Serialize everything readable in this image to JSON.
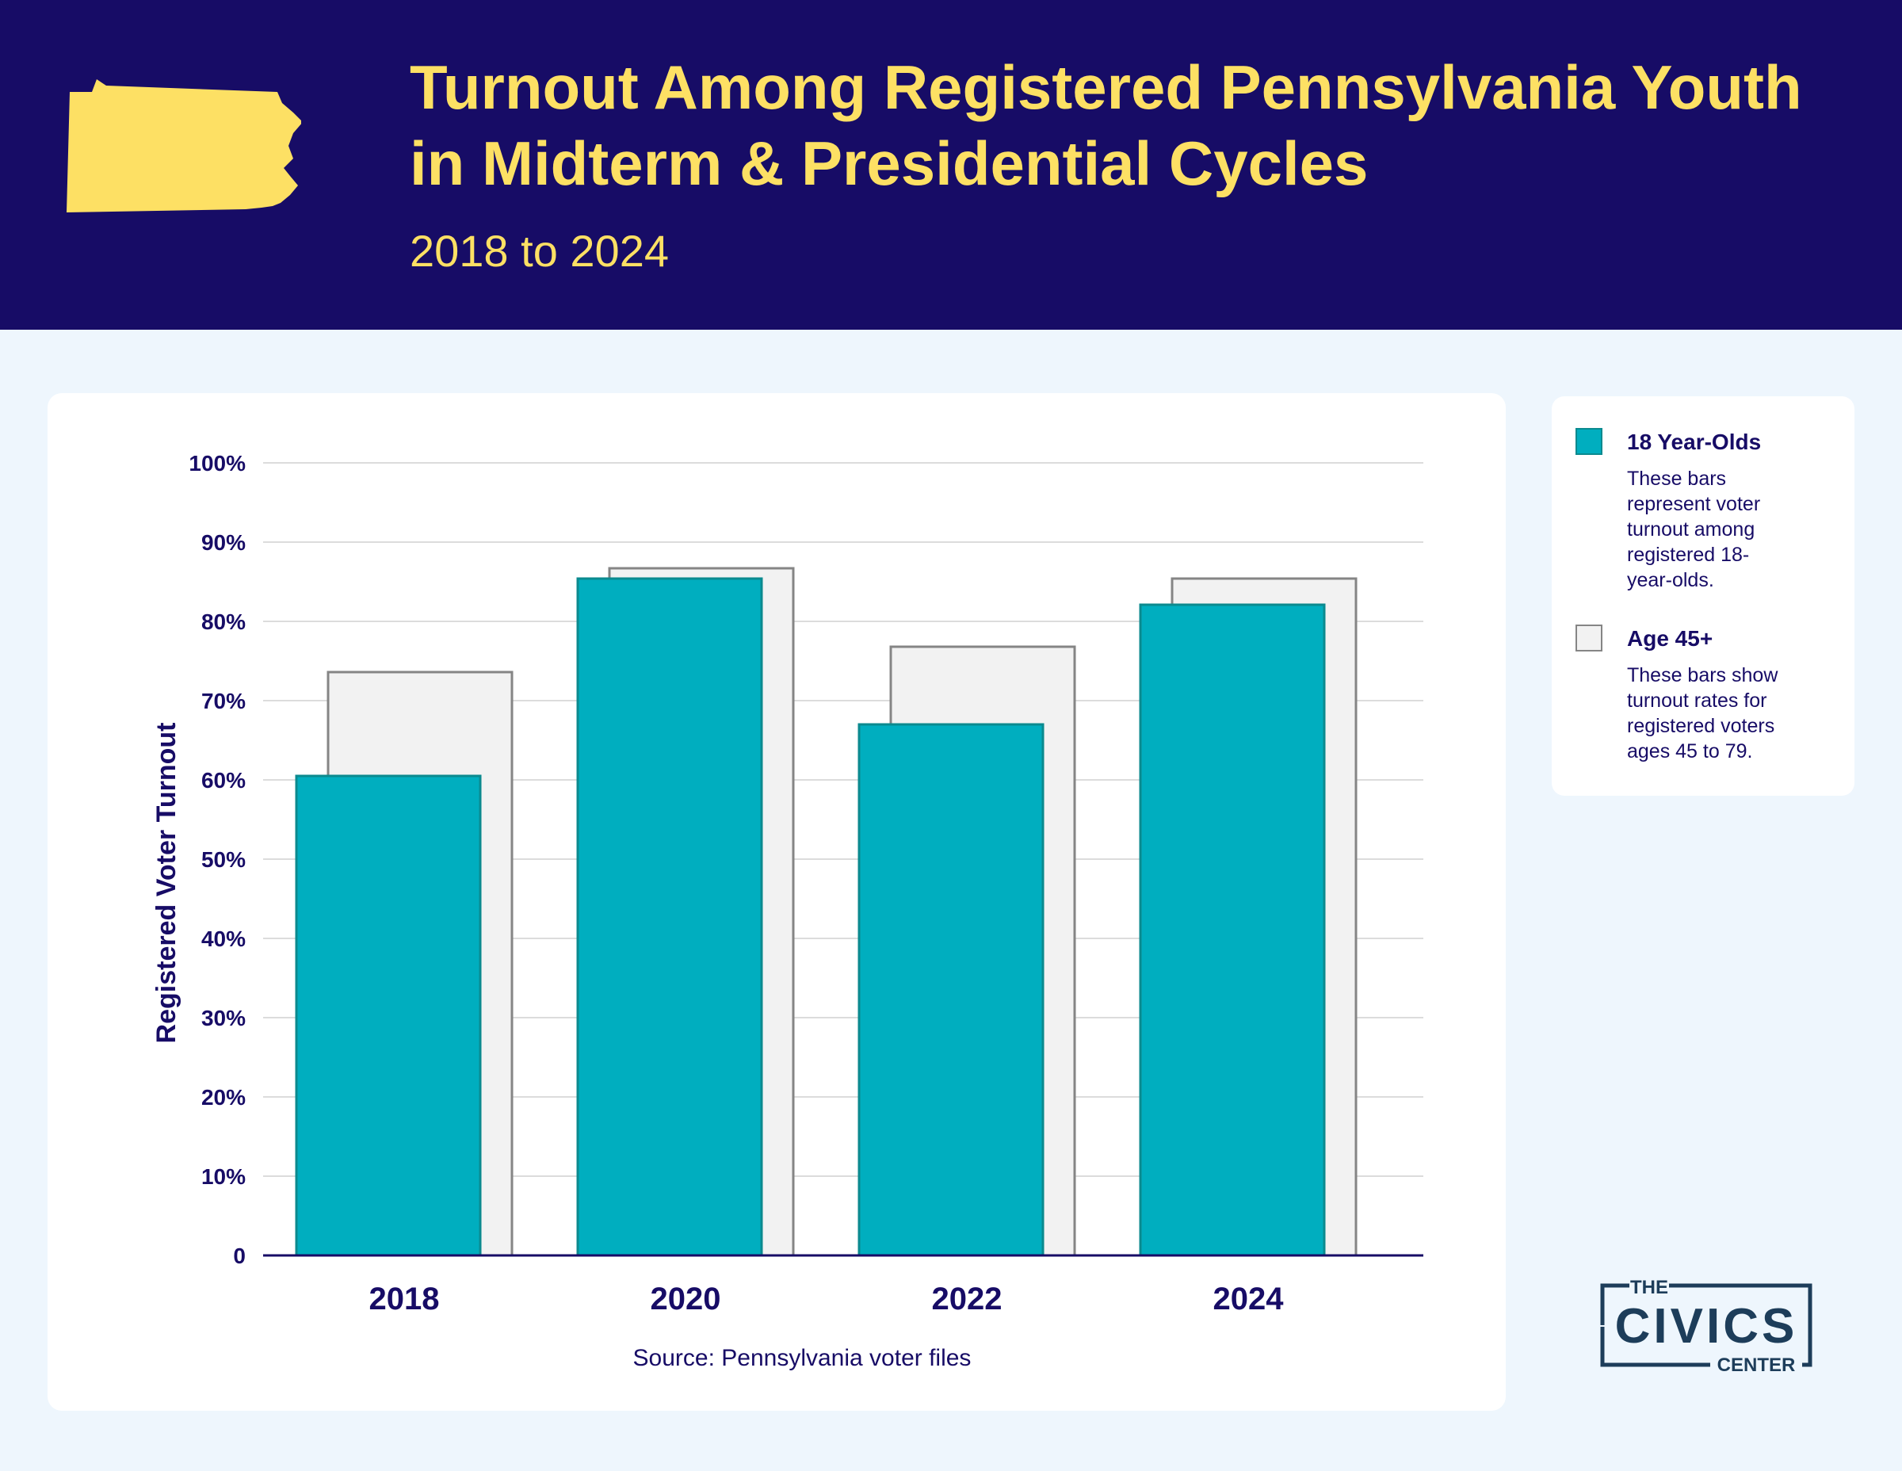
{
  "header": {
    "title": "Turnout Among Registered Pennsylvania Youth in Midterm & Presidential Cycles",
    "subtitle": "2018 to 2024",
    "icon": "pennsylvania-map-icon"
  },
  "colors": {
    "header_bg": "#170c66",
    "title": "#fde064",
    "series_18": "#00aebf",
    "series_18_border": "#0b8a8f",
    "series_45": "#f2f2f2",
    "series_45_border": "#858585",
    "axis": "#170c66"
  },
  "chart_data": {
    "type": "bar",
    "categories": [
      "2018",
      "2020",
      "2022",
      "2024"
    ],
    "series": [
      {
        "name": "18 Year-Olds",
        "values": [
          60.5,
          85.4,
          67.0,
          82.1
        ]
      },
      {
        "name": "Age 45+",
        "values": [
          73.6,
          86.7,
          76.8,
          85.4
        ]
      }
    ],
    "ylabel": "Registered Voter Turnout",
    "xlabel": "",
    "ylim": [
      0,
      100
    ],
    "yticks": [
      {
        "value": 0,
        "label": "0"
      },
      {
        "value": 10,
        "label": "10%"
      },
      {
        "value": 20,
        "label": "20%"
      },
      {
        "value": 30,
        "label": "30%"
      },
      {
        "value": 40,
        "label": "40%"
      },
      {
        "value": 50,
        "label": "50%"
      },
      {
        "value": 60,
        "label": "60%"
      },
      {
        "value": 70,
        "label": "70%"
      },
      {
        "value": 80,
        "label": "80%"
      },
      {
        "value": 90,
        "label": "90%"
      },
      {
        "value": 100,
        "label": "100%"
      }
    ],
    "grid": true,
    "legend": "right",
    "source": "Source: Pennsylvania voter files"
  },
  "legend": {
    "items": [
      {
        "name": "18 Year-Olds",
        "lines": [
          "These bars",
          "represent voter",
          "turnout among",
          "registered 18-",
          "year-olds."
        ]
      },
      {
        "name": "Age 45+",
        "lines": [
          "These bars show",
          "turnout rates for",
          "registered voters",
          "ages 45 to 79."
        ]
      }
    ]
  },
  "logo": {
    "top": "THE",
    "main": "CIVICS",
    "bottom": "CENTER"
  }
}
